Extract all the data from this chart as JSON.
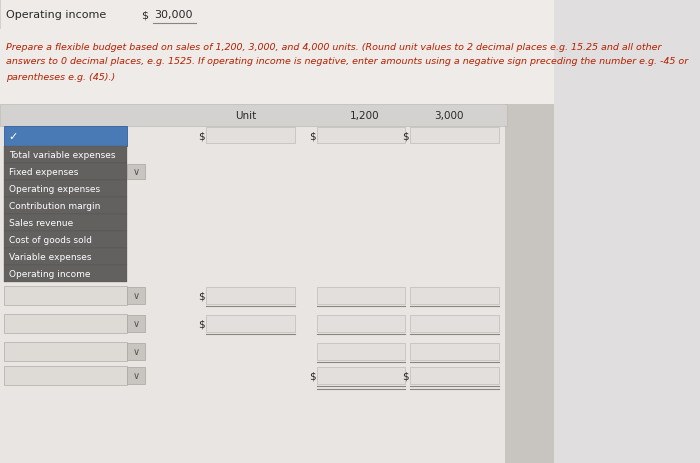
{
  "title_label": "Operating income",
  "title_dollar": "$",
  "title_value": "30,000",
  "instr_line1": "Prepare a flexible budget based on sales of 1,200, 3,000, and 4,000 units. (Round unit values to 2 decimal places e.g. 15.25 and all other",
  "instr_line2": "answers to 0 decimal places, e.g. 1525. If operating income is negative, enter amounts using a negative sign preceding the number e.g. -45 or",
  "instr_line3": "parentheses e.g. (45).)",
  "col_unit": "Unit",
  "col_1200": "1,200",
  "col_3000": "3,000",
  "dropdown_items": [
    "Total variable expenses",
    "Fixed expenses",
    "Operating expenses",
    "Contribution margin",
    "Sales revenue",
    "Cost of goods sold",
    "Variable expenses",
    "Operating income"
  ],
  "page_bg": "#e0dede",
  "top_bg": "#eeebe8",
  "header_bg": "#d4d2d0",
  "form_bg": "#e8e5e2",
  "dd_blue": "#4a7ab5",
  "dd_dark": "#636060",
  "input_bg": "#e2dfdc",
  "input_border": "#c0bcb8",
  "text_dark": "#2a2a2a",
  "text_red": "#b52000",
  "right_shadow": "#c8c4c0"
}
